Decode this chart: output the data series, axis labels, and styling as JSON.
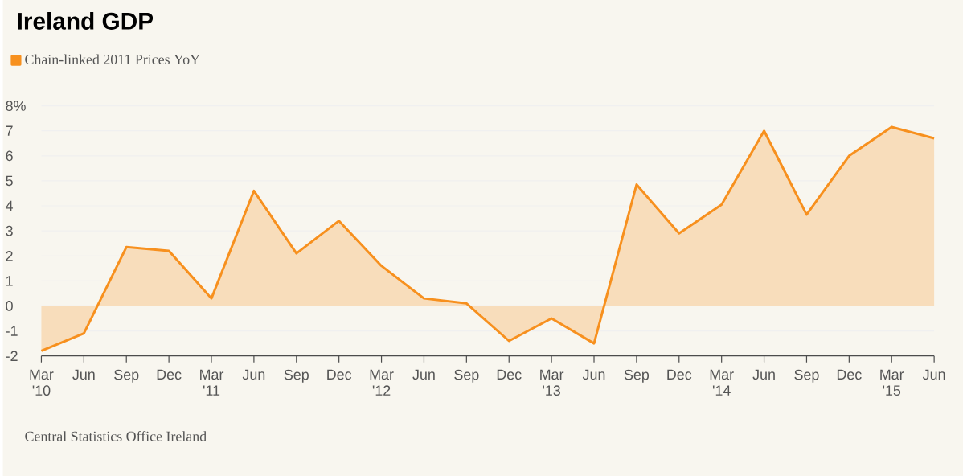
{
  "chart_data": {
    "type": "area",
    "title": "Ireland GDP",
    "categories": [
      "Mar '10",
      "Jun",
      "Sep",
      "Dec",
      "Mar '11",
      "Jun",
      "Sep",
      "Dec",
      "Mar '12",
      "Jun",
      "Sep",
      "Dec",
      "Mar '13",
      "Jun",
      "Sep",
      "Dec",
      "Mar '14",
      "Jun",
      "Sep",
      "Dec",
      "Mar '15",
      "Jun"
    ],
    "series": [
      {
        "name": "Chain-linked 2011 Prices YoY",
        "color": "#f7901e",
        "values": [
          -1.8,
          -1.1,
          2.35,
          2.2,
          0.3,
          4.6,
          2.1,
          3.4,
          1.6,
          0.3,
          0.1,
          -1.4,
          -0.5,
          -1.5,
          4.85,
          2.9,
          4.05,
          7.0,
          3.65,
          6.0,
          7.15,
          6.7
        ]
      }
    ],
    "ylim": [
      -2,
      8
    ],
    "yticks": [
      -2,
      -1,
      0,
      1,
      2,
      3,
      4,
      5,
      6,
      7,
      {
        "value": 8,
        "label": "8%"
      }
    ],
    "grid": "y",
    "legend": "top left",
    "annotations": [
      "Central Statistics Office Ireland"
    ]
  }
}
